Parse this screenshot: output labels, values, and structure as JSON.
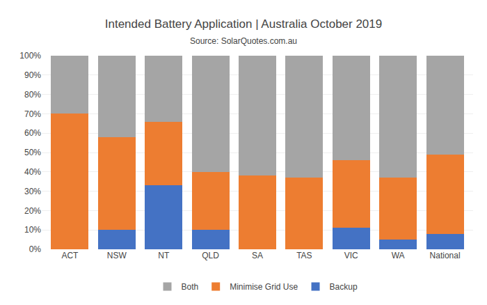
{
  "chart_data": {
    "type": "bar",
    "stacked": true,
    "title": "Intended Battery Application | Australia October 2019",
    "subtitle": "Source: SolarQuotes.com.au",
    "categories": [
      "ACT",
      "NSW",
      "NT",
      "QLD",
      "SA",
      "TAS",
      "VIC",
      "WA",
      "National"
    ],
    "series": [
      {
        "name": "Backup",
        "color": "#4472C4",
        "values": [
          0,
          10,
          33,
          10,
          0,
          0,
          11,
          5,
          8
        ]
      },
      {
        "name": "Minimise Grid Use",
        "color": "#ED7D31",
        "values": [
          70,
          48,
          33,
          30,
          38,
          37,
          35,
          32,
          41
        ]
      },
      {
        "name": "Both",
        "color": "#A5A5A5",
        "values": [
          30,
          42,
          34,
          60,
          62,
          63,
          54,
          63,
          51
        ]
      }
    ],
    "ylim": [
      0,
      100
    ],
    "yticks": [
      {
        "value": 0,
        "label": "0%"
      },
      {
        "value": 10,
        "label": "10%"
      },
      {
        "value": 20,
        "label": "20%"
      },
      {
        "value": 30,
        "label": "30%"
      },
      {
        "value": 40,
        "label": "40%"
      },
      {
        "value": 50,
        "label": "50%"
      },
      {
        "value": 60,
        "label": "60%"
      },
      {
        "value": 70,
        "label": "70%"
      },
      {
        "value": 80,
        "label": "80%"
      },
      {
        "value": 90,
        "label": "90%"
      },
      {
        "value": 100,
        "label": "100%"
      }
    ],
    "grid": true,
    "legend": "bottom"
  }
}
